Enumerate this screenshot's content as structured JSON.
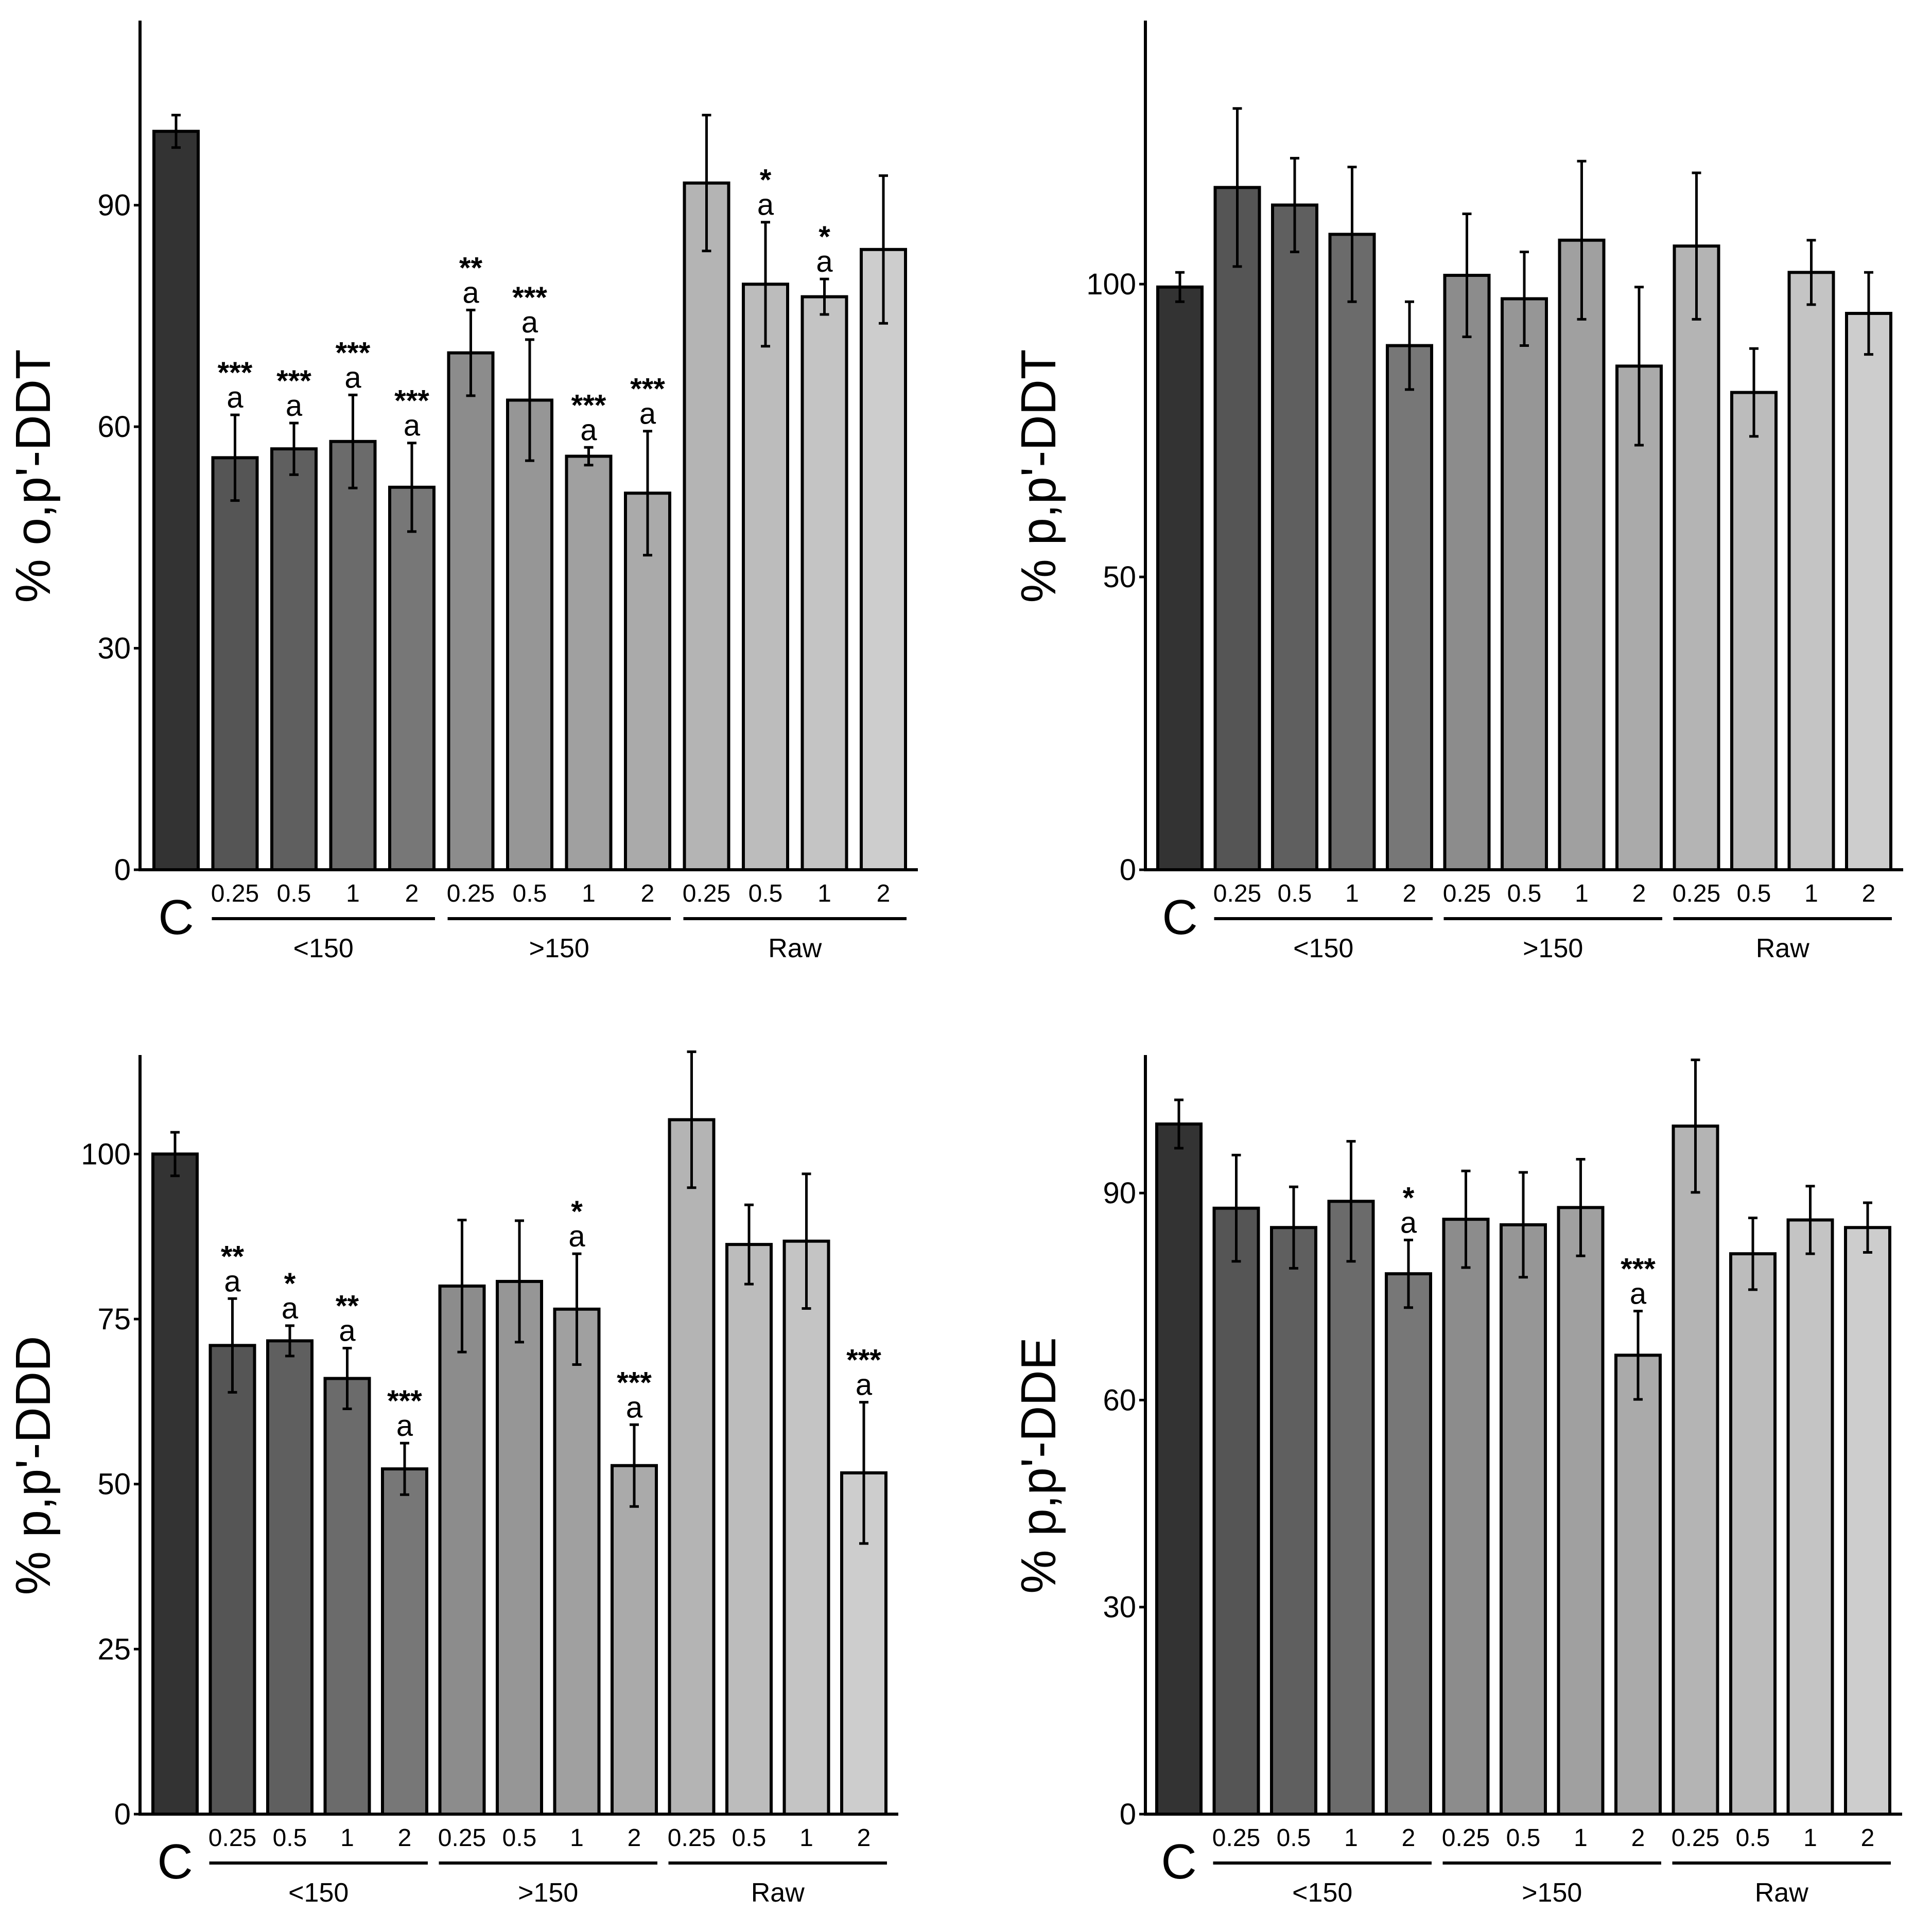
{
  "chart_data": [
    {
      "type": "bar",
      "ylabel": "% o,p'-DDT",
      "ylim": [
        0,
        115
      ],
      "yticks": [
        0,
        30,
        60,
        90
      ],
      "control_label": "C",
      "categories": [
        "C",
        "0.25",
        "0.5",
        "1",
        "2",
        "0.25",
        "0.5",
        "1",
        "2",
        "0.25",
        "0.5",
        "1",
        "2"
      ],
      "groups": [
        {
          "name": "<150",
          "categories": [
            "0.25",
            "0.5",
            "1",
            "2"
          ]
        },
        {
          "name": ">150",
          "categories": [
            "0.25",
            "0.5",
            "1",
            "2"
          ]
        },
        {
          "name": "Raw",
          "categories": [
            "0.25",
            "0.5",
            "1",
            "2"
          ]
        }
      ],
      "values": [
        100,
        55.8,
        57,
        58,
        51.8,
        70,
        63.6,
        56,
        51,
        93,
        79.3,
        77.6,
        84
      ],
      "errors": [
        2.2,
        5.8,
        3.5,
        6.3,
        6,
        5.8,
        8.2,
        1.2,
        8.4,
        9.2,
        8.4,
        2.4,
        10
      ],
      "annotations": [
        [
          "",
          ""
        ],
        [
          "***",
          "a"
        ],
        [
          "***",
          "a"
        ],
        [
          "***",
          "a"
        ],
        [
          "***",
          "a"
        ],
        [
          "**",
          "a"
        ],
        [
          "***",
          "a"
        ],
        [
          "***",
          "a"
        ],
        [
          "***",
          "a"
        ],
        [
          "",
          ""
        ],
        [
          "*",
          "a"
        ],
        [
          "*",
          "a"
        ],
        [
          "",
          ""
        ]
      ],
      "colors": [
        "#333333",
        "#555555",
        "#5f5f5f",
        "#6b6b6b",
        "#777777",
        "#8c8c8c",
        "#969696",
        "#a0a0a0",
        "#aaaaaa",
        "#b4b4b4",
        "#bcbcbc",
        "#c4c4c4",
        "#cdcdcd"
      ]
    },
    {
      "type": "bar",
      "ylabel": "% p,p'-DDT",
      "ylim": [
        0,
        145
      ],
      "yticks": [
        0,
        50,
        100
      ],
      "control_label": "C",
      "categories": [
        "C",
        "0.25",
        "0.5",
        "1",
        "2",
        "0.25",
        "0.5",
        "1",
        "2",
        "0.25",
        "0.5",
        "1",
        "2"
      ],
      "groups": [
        {
          "name": "<150",
          "categories": [
            "0.25",
            "0.5",
            "1",
            "2"
          ]
        },
        {
          "name": ">150",
          "categories": [
            "0.25",
            "0.5",
            "1",
            "2"
          ]
        },
        {
          "name": "Raw",
          "categories": [
            "0.25",
            "0.5",
            "1",
            "2"
          ]
        }
      ],
      "values": [
        99.5,
        116.5,
        113.5,
        108.5,
        89.5,
        101.5,
        97.5,
        107.5,
        86,
        106.5,
        81.5,
        102,
        95
      ],
      "errors": [
        2.5,
        13.5,
        8,
        11.5,
        7.5,
        10.5,
        8,
        13.5,
        13.5,
        12.5,
        7.5,
        5.5,
        7
      ],
      "annotations": [
        [
          "",
          ""
        ],
        [
          "",
          ""
        ],
        [
          "",
          ""
        ],
        [
          "",
          ""
        ],
        [
          "",
          ""
        ],
        [
          "",
          ""
        ],
        [
          "",
          ""
        ],
        [
          "",
          ""
        ],
        [
          "",
          ""
        ],
        [
          "",
          ""
        ],
        [
          "",
          ""
        ],
        [
          "",
          ""
        ],
        [
          "",
          ""
        ]
      ],
      "colors": [
        "#333333",
        "#555555",
        "#5f5f5f",
        "#6b6b6b",
        "#777777",
        "#8c8c8c",
        "#969696",
        "#a0a0a0",
        "#aaaaaa",
        "#b4b4b4",
        "#bcbcbc",
        "#c4c4c4",
        "#cdcdcd"
      ]
    },
    {
      "type": "bar",
      "ylabel": "% p,p'-DDD",
      "ylim": [
        0,
        115
      ],
      "yticks": [
        0,
        25,
        50,
        75,
        100
      ],
      "control_label": "C",
      "categories": [
        "C",
        "0.25",
        "0.5",
        "1",
        "2",
        "0.25",
        "0.5",
        "1",
        "2",
        "0.25",
        "0.5",
        "1",
        "2"
      ],
      "groups": [
        {
          "name": "<150",
          "categories": [
            "0.25",
            "0.5",
            "1",
            "2"
          ]
        },
        {
          "name": ">150",
          "categories": [
            "0.25",
            "0.5",
            "1",
            "2"
          ]
        },
        {
          "name": "Raw",
          "categories": [
            "0.25",
            "0.5",
            "1",
            "2"
          ]
        }
      ],
      "values": [
        100,
        71,
        71.7,
        66,
        52.3,
        80,
        80.7,
        76.5,
        52.8,
        105.2,
        86.3,
        86.8,
        51.7
      ],
      "errors": [
        3.3,
        7.1,
        2.3,
        4.6,
        3.9,
        10,
        9.2,
        8.4,
        6.2,
        10.3,
        6,
        10.2,
        10.7
      ],
      "annotations": [
        [
          "",
          ""
        ],
        [
          "**",
          "a"
        ],
        [
          "*",
          "a"
        ],
        [
          "**",
          "a"
        ],
        [
          "***",
          "a"
        ],
        [
          "",
          ""
        ],
        [
          "",
          ""
        ],
        [
          "*",
          "a"
        ],
        [
          "***",
          "a"
        ],
        [
          "",
          ""
        ],
        [
          "",
          ""
        ],
        [
          "",
          ""
        ],
        [
          "***",
          "a"
        ]
      ],
      "colors": [
        "#333333",
        "#555555",
        "#5f5f5f",
        "#6b6b6b",
        "#777777",
        "#8c8c8c",
        "#969696",
        "#a0a0a0",
        "#aaaaaa",
        "#b4b4b4",
        "#bcbcbc",
        "#c4c4c4",
        "#cdcdcd"
      ]
    },
    {
      "type": "bar",
      "ylabel": "% p,p'-DDE",
      "ylim": [
        0,
        110
      ],
      "yticks": [
        0,
        30,
        60,
        90
      ],
      "control_label": "C",
      "categories": [
        "C",
        "0.25",
        "0.5",
        "1",
        "2",
        "0.25",
        "0.5",
        "1",
        "2",
        "0.25",
        "0.5",
        "1",
        "2"
      ],
      "groups": [
        {
          "name": "<150",
          "categories": [
            "0.25",
            "0.5",
            "1",
            "2"
          ]
        },
        {
          "name": ">150",
          "categories": [
            "0.25",
            "0.5",
            "1",
            "2"
          ]
        },
        {
          "name": "Raw",
          "categories": [
            "0.25",
            "0.5",
            "1",
            "2"
          ]
        }
      ],
      "values": [
        100,
        87.8,
        85,
        88.8,
        78.3,
        86.2,
        85.4,
        87.9,
        66.5,
        99.7,
        81.2,
        86.1,
        85
      ],
      "errors": [
        3.5,
        7.7,
        5.9,
        8.7,
        4.9,
        7,
        7.6,
        7,
        6.4,
        9.6,
        5.2,
        4.9,
        3.6
      ],
      "annotations": [
        [
          "",
          ""
        ],
        [
          "",
          ""
        ],
        [
          "",
          ""
        ],
        [
          "",
          ""
        ],
        [
          "*",
          "a"
        ],
        [
          "",
          ""
        ],
        [
          "",
          ""
        ],
        [
          "",
          ""
        ],
        [
          "***",
          "a"
        ],
        [
          "",
          ""
        ],
        [
          "",
          ""
        ],
        [
          "",
          ""
        ],
        [
          "",
          ""
        ]
      ],
      "colors": [
        "#333333",
        "#555555",
        "#5f5f5f",
        "#6b6b6b",
        "#777777",
        "#8c8c8c",
        "#969696",
        "#a0a0a0",
        "#aaaaaa",
        "#b4b4b4",
        "#bcbcbc",
        "#c4c4c4",
        "#cdcdcd"
      ]
    }
  ]
}
